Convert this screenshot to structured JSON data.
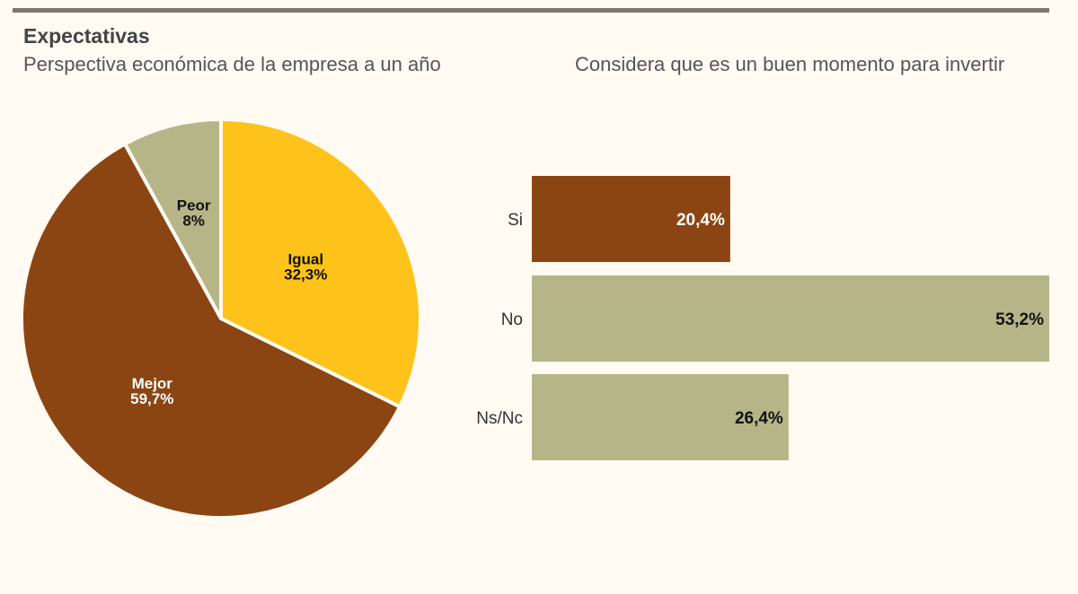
{
  "header": {
    "title": "Expectativas"
  },
  "colors": {
    "brown": "#8b4513",
    "yellow": "#fec31a",
    "olive": "#b6b587",
    "background": "#fffaf2"
  },
  "chart_data": [
    {
      "type": "pie",
      "title": "Perspectiva económica de la empresa a un año",
      "slices": [
        {
          "label": "Igual",
          "value": 32.3,
          "display": "32,3%",
          "color": "#fec31a",
          "text_color": "#111111"
        },
        {
          "label": "Mejor",
          "value": 59.7,
          "display": "59,7%",
          "color": "#8b4513",
          "text_color": "#ffffff"
        },
        {
          "label": "Peor",
          "value": 8,
          "display": "8%",
          "color": "#b6b587",
          "text_color": "#111111"
        }
      ],
      "start": "top",
      "direction": "clockwise"
    },
    {
      "type": "bar",
      "orientation": "horizontal",
      "title": "Considera que es un buen momento para invertir",
      "categories": [
        "Si",
        "No",
        "Ns/Nc"
      ],
      "values": [
        20.4,
        53.2,
        26.4
      ],
      "labels": [
        "20,4%",
        "53,2%",
        "26,4%"
      ],
      "colors": [
        "#8b4513",
        "#b6b587",
        "#b6b587"
      ],
      "label_colors": [
        "#ffffff",
        "#111111",
        "#111111"
      ],
      "grid": false
    }
  ]
}
